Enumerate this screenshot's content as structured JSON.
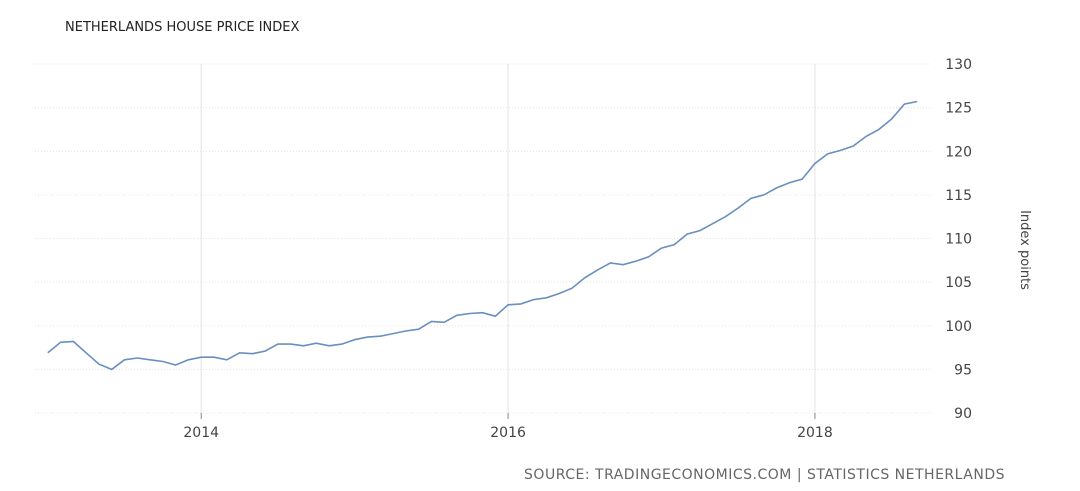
{
  "chart_data": {
    "type": "line",
    "title": "NETHERLANDS HOUSE PRICE INDEX",
    "ylabel": "Index points",
    "source": "SOURCE: TRADINGECONOMICS.COM | STATISTICS NETHERLANDS",
    "ylim": [
      90,
      130
    ],
    "yticks": [
      90,
      95,
      100,
      105,
      110,
      115,
      120,
      125,
      130
    ],
    "xlim": [
      "2012-12",
      "2018-10"
    ],
    "xticks": [
      {
        "label": "2014",
        "date": "2014-01"
      },
      {
        "label": "2016",
        "date": "2016-01"
      },
      {
        "label": "2018",
        "date": "2018-01"
      }
    ],
    "grid": true,
    "series": [
      {
        "color": "#6a8fbf",
        "points": [
          [
            "2013-01",
            96.9
          ],
          [
            "2013-02",
            98.1
          ],
          [
            "2013-03",
            98.2
          ],
          [
            "2013-04",
            96.9
          ],
          [
            "2013-05",
            95.6
          ],
          [
            "2013-06",
            95.0
          ],
          [
            "2013-07",
            96.1
          ],
          [
            "2013-08",
            96.3
          ],
          [
            "2013-09",
            96.1
          ],
          [
            "2013-10",
            95.9
          ],
          [
            "2013-11",
            95.5
          ],
          [
            "2013-12",
            96.1
          ],
          [
            "2014-01",
            96.4
          ],
          [
            "2014-02",
            96.4
          ],
          [
            "2014-03",
            96.1
          ],
          [
            "2014-04",
            96.9
          ],
          [
            "2014-05",
            96.8
          ],
          [
            "2014-06",
            97.1
          ],
          [
            "2014-07",
            97.9
          ],
          [
            "2014-08",
            97.9
          ],
          [
            "2014-09",
            97.7
          ],
          [
            "2014-10",
            98.0
          ],
          [
            "2014-11",
            97.7
          ],
          [
            "2014-12",
            97.9
          ],
          [
            "2015-01",
            98.4
          ],
          [
            "2015-02",
            98.7
          ],
          [
            "2015-03",
            98.8
          ],
          [
            "2015-04",
            99.1
          ],
          [
            "2015-05",
            99.4
          ],
          [
            "2015-06",
            99.6
          ],
          [
            "2015-07",
            100.5
          ],
          [
            "2015-08",
            100.4
          ],
          [
            "2015-09",
            101.2
          ],
          [
            "2015-10",
            101.4
          ],
          [
            "2015-11",
            101.5
          ],
          [
            "2015-12",
            101.1
          ],
          [
            "2016-01",
            102.4
          ],
          [
            "2016-02",
            102.5
          ],
          [
            "2016-03",
            103.0
          ],
          [
            "2016-04",
            103.2
          ],
          [
            "2016-05",
            103.7
          ],
          [
            "2016-06",
            104.3
          ],
          [
            "2016-07",
            105.5
          ],
          [
            "2016-08",
            106.4
          ],
          [
            "2016-09",
            107.2
          ],
          [
            "2016-10",
            107.0
          ],
          [
            "2016-11",
            107.4
          ],
          [
            "2016-12",
            107.9
          ],
          [
            "2017-01",
            108.9
          ],
          [
            "2017-02",
            109.3
          ],
          [
            "2017-03",
            110.5
          ],
          [
            "2017-04",
            110.9
          ],
          [
            "2017-05",
            111.7
          ],
          [
            "2017-06",
            112.5
          ],
          [
            "2017-07",
            113.5
          ],
          [
            "2017-08",
            114.6
          ],
          [
            "2017-09",
            115.0
          ],
          [
            "2017-10",
            115.8
          ],
          [
            "2017-11",
            116.4
          ],
          [
            "2017-12",
            116.8
          ],
          [
            "2018-01",
            118.6
          ],
          [
            "2018-02",
            119.7
          ],
          [
            "2018-03",
            120.1
          ],
          [
            "2018-04",
            120.6
          ],
          [
            "2018-05",
            121.7
          ],
          [
            "2018-06",
            122.5
          ],
          [
            "2018-07",
            123.7
          ],
          [
            "2018-08",
            125.4
          ],
          [
            "2018-09",
            125.7
          ]
        ]
      }
    ]
  }
}
